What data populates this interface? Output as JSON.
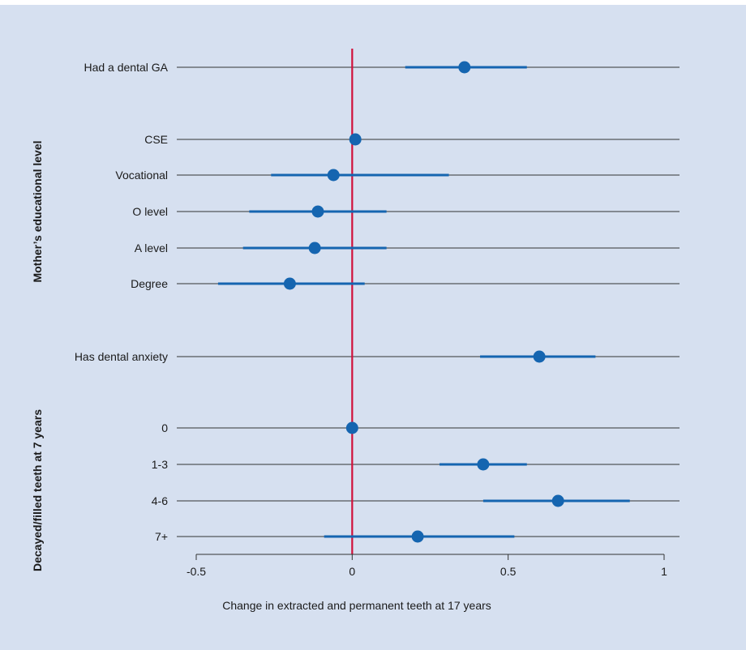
{
  "chart_data": {
    "type": "forest",
    "xlabel": "Change in extracted and permanent teeth at 17 years",
    "xlim": [
      -0.5,
      1
    ],
    "xticks": [
      {
        "value": -0.5,
        "label": "-0.5"
      },
      {
        "value": 0,
        "label": "0"
      },
      {
        "value": 0.5,
        "label": "0.5"
      },
      {
        "value": 1,
        "label": "1"
      }
    ],
    "reference_line": 0,
    "group_labels": [
      {
        "id": "mother",
        "text": "Mother’s educational level",
        "rows": [
          1,
          5
        ]
      },
      {
        "id": "decayed",
        "text": "Decayed/filled teeth at 7 years",
        "rows": [
          7,
          10
        ]
      }
    ],
    "rows": [
      {
        "label": "Had a dental GA",
        "estimate": 0.36,
        "lower": 0.17,
        "upper": 0.56
      },
      {
        "label": "CSE",
        "estimate": 0.01,
        "lower": null,
        "upper": null
      },
      {
        "label": "Vocational",
        "estimate": -0.06,
        "lower": -0.26,
        "upper": 0.31
      },
      {
        "label": "O level",
        "estimate": -0.11,
        "lower": -0.33,
        "upper": 0.11
      },
      {
        "label": "A level",
        "estimate": -0.12,
        "lower": -0.35,
        "upper": 0.11
      },
      {
        "label": "Degree",
        "estimate": -0.2,
        "lower": -0.43,
        "upper": 0.04
      },
      {
        "label": "Has dental anxiety",
        "estimate": 0.6,
        "lower": 0.41,
        "upper": 0.78
      },
      {
        "label": "0",
        "estimate": 0.0,
        "lower": null,
        "upper": null
      },
      {
        "label": "1-3",
        "estimate": 0.42,
        "lower": 0.28,
        "upper": 0.56
      },
      {
        "label": "4-6",
        "estimate": 0.66,
        "lower": 0.42,
        "upper": 0.89
      },
      {
        "label": "7+",
        "estimate": 0.21,
        "lower": -0.09,
        "upper": 0.52
      }
    ],
    "colors": {
      "background": "#d6e0f0",
      "marker": "#1565b0",
      "reference": "#d0103a",
      "row_line": "#333333"
    }
  }
}
